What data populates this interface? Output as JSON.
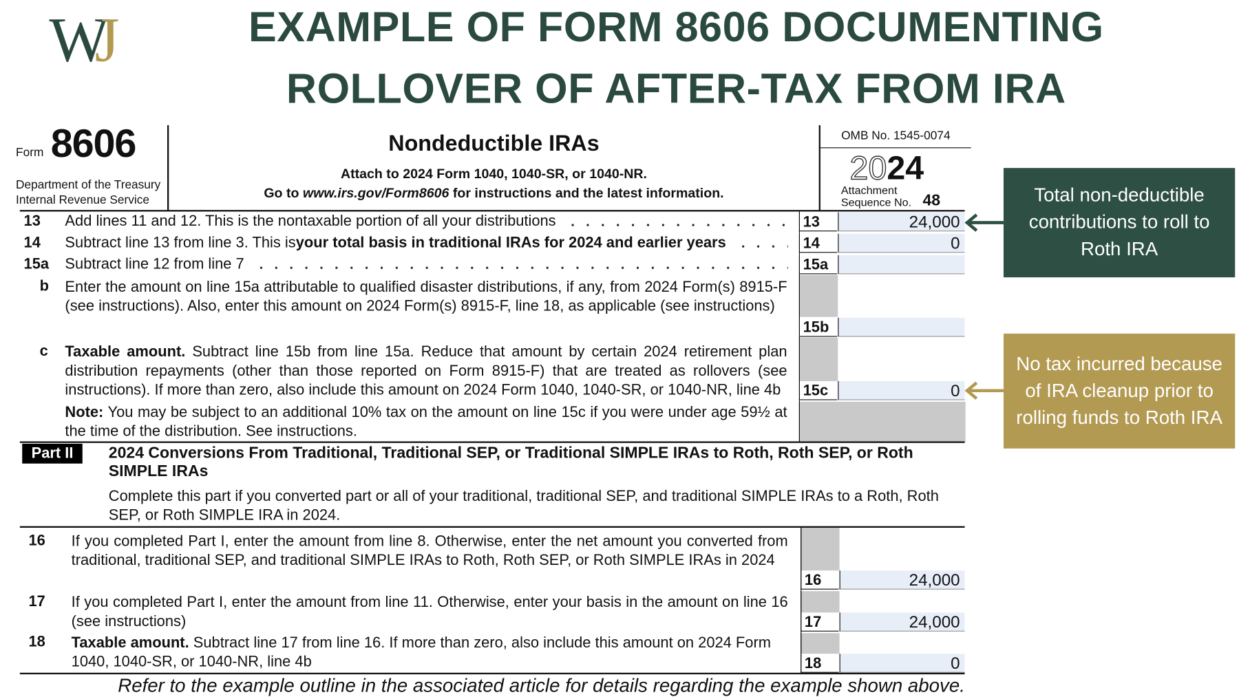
{
  "header": {
    "logo": "WJ",
    "title_lines": [
      "EXAMPLE OF FORM 8606 DOCUMENTING",
      "ROLLOVER OF AFTER-TAX FROM IRA"
    ]
  },
  "form": {
    "form_label": "Form",
    "form_number": "8606",
    "department": "Department of the Treasury",
    "irs": "Internal Revenue Service",
    "title": "Nondeductible IRAs",
    "attach": "Attach to 2024 Form 1040, 1040-SR, or 1040-NR.",
    "goto_prefix": "Go to ",
    "goto_url": "www.irs.gov/Form8606",
    "goto_suffix": " for instructions and the latest information.",
    "omb": "OMB No. 1545-0074",
    "year_light": "20",
    "year_bold": "24",
    "attachment": "Attachment",
    "sequence": "Sequence No.",
    "sequence_no": "48"
  },
  "lines": [
    {
      "num": "13",
      "text": "Add lines 11 and 12. This is the nontaxable portion of all your distributions",
      "box": "13",
      "amount": "24,000"
    },
    {
      "num": "14",
      "text": "Subtract line 13 from line 3. This is ",
      "bold": "your total basis in traditional IRAs for 2024 and earlier years",
      "box": "14",
      "amount": "0"
    },
    {
      "num": "15a",
      "text": "Subtract line 12 from line 7",
      "box": "15a"
    },
    {
      "num": "b",
      "text": "Enter the amount on line 15a attributable to qualified disaster distributions, if any, from 2024 Form(s) 8915-F (see instructions). Also, enter this amount on 2024 Form(s) 8915-F, line 18, as applicable (see instructions)",
      "box": "15b"
    },
    {
      "num": "c",
      "lead": "Taxable amount.",
      "text": " Subtract line 15b from line 15a. Reduce that amount by certain 2024 retirement plan distribution repayments (other than those reported on Form 8915-F) that are treated as rollovers (see instructions). If more than zero, also include this amount on 2024 Form 1040, 1040-SR, or 1040-NR, line 4b",
      "box": "15c",
      "amount": "0"
    },
    {
      "lead": "Note:",
      "text": " You may be subject to an additional 10% tax on the amount on line 15c if you were under age 59½ at the time of the distribution. See instructions."
    }
  ],
  "part2": {
    "label": "Part II",
    "title": "2024 Conversions From Traditional, Traditional SEP, or Traditional SIMPLE IRAs to Roth, Roth SEP, or Roth SIMPLE IRAs",
    "intro": "Complete this part if you converted part or all of your traditional, traditional SEP, and traditional SIMPLE IRAs to a Roth, Roth SEP, or Roth SIMPLE IRA in 2024.",
    "lines": [
      {
        "num": "16",
        "text": "If you completed Part I, enter the amount from line 8. Otherwise, enter the net amount you converted from traditional, traditional SEP, and traditional SIMPLE IRAs to Roth, Roth SEP, or Roth SIMPLE IRAs in 2024",
        "box": "16",
        "amount": "24,000"
      },
      {
        "num": "17",
        "text": "If you completed Part I, enter the amount from line 11. Otherwise, enter your basis in the amount on line 16 (see instructions)",
        "box": "17",
        "amount": "24,000"
      },
      {
        "num": "18",
        "lead": "Taxable amount.",
        "text": " Subtract line 17 from line 16. If more than zero, also include this amount on 2024 Form 1040, 1040-SR, or 1040-NR, line 4b",
        "box": "18",
        "amount": "0"
      }
    ]
  },
  "callouts": [
    "Total non-deductible contributions to roll to Roth IRA",
    "No tax incurred because of IRA cleanup prior to rolling funds to Roth IRA"
  ],
  "footer": "Refer to the example outline in the associated article for details regarding the example shown above."
}
